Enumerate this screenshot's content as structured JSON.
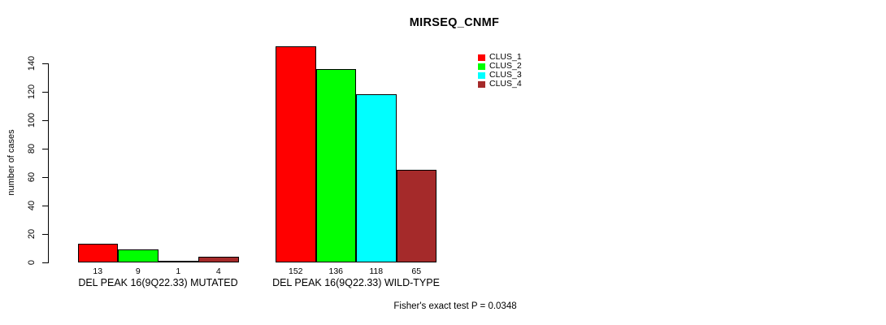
{
  "title": "MIRSEQ_CNMF",
  "footer": "Fisher's exact test P = 0.0348",
  "y_axis": {
    "label": "number of cases",
    "ticks": [
      0,
      20,
      40,
      60,
      80,
      100,
      120,
      140
    ]
  },
  "legend": {
    "items": [
      {
        "label": "CLUS_1",
        "color": "#FF0000"
      },
      {
        "label": "CLUS_2",
        "color": "#00FF00"
      },
      {
        "label": "CLUS_3",
        "color": "#00FFFF"
      },
      {
        "label": "CLUS_4",
        "color": "#A52A2A"
      }
    ]
  },
  "chart_data": {
    "type": "bar",
    "title": "MIRSEQ_CNMF",
    "ylabel": "number of cases",
    "xlabel": "",
    "ylim": [
      0,
      140
    ],
    "grid": false,
    "legend_position": "top-right",
    "series_names": [
      "CLUS_1",
      "CLUS_2",
      "CLUS_3",
      "CLUS_4"
    ],
    "series_colors": [
      "#FF0000",
      "#00FF00",
      "#00FFFF",
      "#A52A2A"
    ],
    "groups": [
      {
        "label": "DEL PEAK 16(9Q22.33) MUTATED",
        "values": [
          13,
          9,
          1,
          4
        ]
      },
      {
        "label": "DEL PEAK 16(9Q22.33) WILD-TYPE",
        "values": [
          152,
          136,
          118,
          65
        ]
      }
    ],
    "annotation": "Fisher's exact test P = 0.0348"
  }
}
